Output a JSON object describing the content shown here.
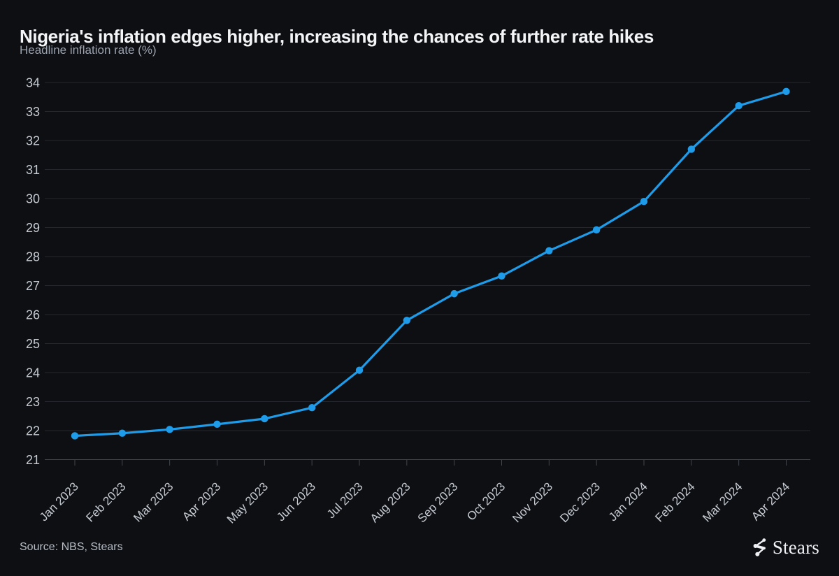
{
  "page": {
    "background": "#0e0f13"
  },
  "header": {
    "title": "Nigeria's inflation edges higher, increasing the chances of further rate hikes",
    "subtitle": "Headline inflation rate (%)"
  },
  "footer": {
    "source": "Source: NBS, Stears",
    "brand_name": "Stears",
    "brand_icon": "stears-network-icon"
  },
  "chart_data": {
    "type": "line",
    "title": "Nigeria's inflation edges higher, increasing the chances of further rate hikes",
    "subtitle": "Headline inflation rate (%)",
    "xlabel": "",
    "ylabel": "Headline inflation rate (%)",
    "x": [
      "Jan 2023",
      "Feb 2023",
      "Mar 2023",
      "Apr 2023",
      "May 2023",
      "Jun 2023",
      "Jul 2023",
      "Aug 2023",
      "Sep 2023",
      "Oct 2023",
      "Nov 2023",
      "Dec 2023",
      "Jan 2024",
      "Feb 2024",
      "Mar 2024",
      "Apr 2024"
    ],
    "series": [
      {
        "name": "Headline inflation rate (%)",
        "values": [
          21.82,
          21.91,
          22.04,
          22.22,
          22.41,
          22.79,
          24.08,
          25.8,
          26.72,
          27.33,
          28.2,
          28.92,
          29.9,
          31.7,
          33.2,
          33.69
        ]
      }
    ],
    "ylim": [
      21,
      34
    ],
    "ytick_step": 1,
    "grid": true,
    "legend_position": "none",
    "marker": "circle",
    "colors": {
      "line": "#1f9ce9",
      "grid": "#24272d",
      "axis": "#41454d",
      "tick_label": "#c7ccd4"
    }
  }
}
